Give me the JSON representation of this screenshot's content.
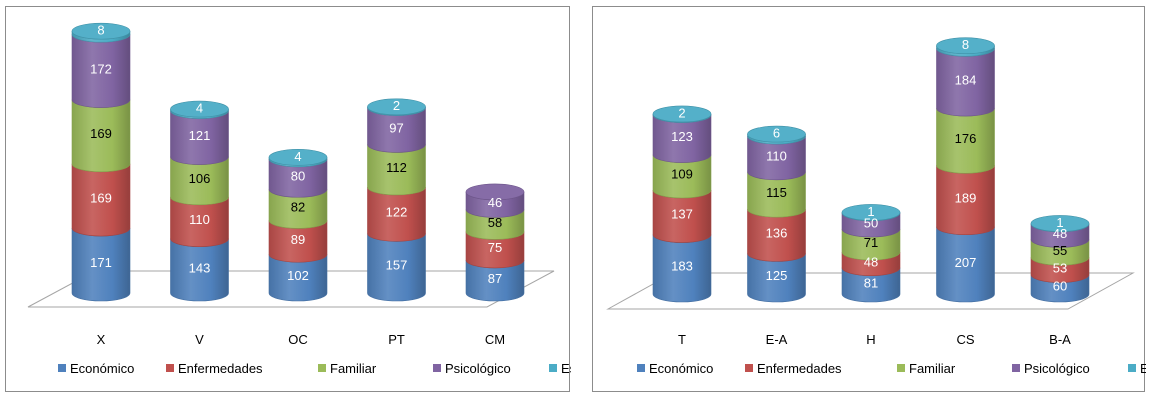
{
  "colors": {
    "Económico": "#4f81bd",
    "Enfermedades": "#c0504d",
    "Familiar": "#9bbb59",
    "Psicológico": "#8064a2",
    "Escolares": "#4bacc6"
  },
  "chart_data": [
    {
      "type": "bar",
      "stacked": true,
      "categories": [
        "X",
        "V",
        "OC",
        "PT",
        "CM"
      ],
      "series": [
        {
          "name": "Económico",
          "values": [
            171,
            143,
            102,
            157,
            87
          ]
        },
        {
          "name": "Enfermedades",
          "values": [
            169,
            110,
            89,
            122,
            75
          ]
        },
        {
          "name": "Familiar",
          "values": [
            169,
            106,
            82,
            112,
            58
          ]
        },
        {
          "name": "Psicológico",
          "values": [
            172,
            121,
            80,
            97,
            46
          ]
        },
        {
          "name": "Escolares",
          "values": [
            8,
            4,
            4,
            2,
            null
          ]
        }
      ],
      "legend": "bottom",
      "grid": false
    },
    {
      "type": "bar",
      "stacked": true,
      "categories": [
        "T",
        "E-A",
        "H",
        "CS",
        "B-A"
      ],
      "series": [
        {
          "name": "Económico",
          "values": [
            183,
            125,
            81,
            207,
            60
          ]
        },
        {
          "name": "Enfermedades",
          "values": [
            137,
            136,
            48,
            189,
            53
          ]
        },
        {
          "name": "Familiar",
          "values": [
            109,
            115,
            71,
            176,
            55
          ]
        },
        {
          "name": "Psicológico",
          "values": [
            123,
            110,
            50,
            184,
            48
          ]
        },
        {
          "name": "Escolares",
          "values": [
            2,
            6,
            1,
            8,
            1
          ]
        }
      ],
      "legend": "bottom",
      "grid": false
    }
  ]
}
